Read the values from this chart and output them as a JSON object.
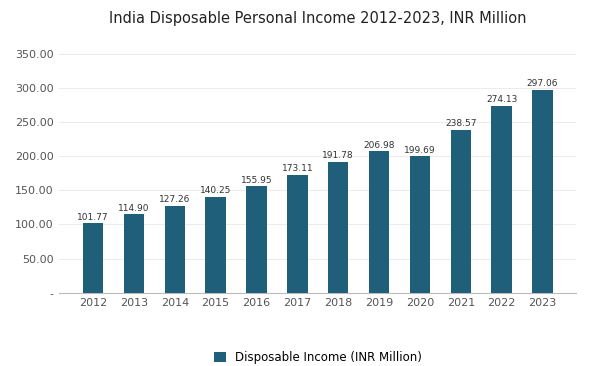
{
  "title": "India Disposable Personal Income 2012-2023, INR Million",
  "years": [
    2012,
    2013,
    2014,
    2015,
    2016,
    2017,
    2018,
    2019,
    2020,
    2021,
    2022,
    2023
  ],
  "values": [
    101.77,
    114.9,
    127.26,
    140.25,
    155.95,
    173.11,
    191.78,
    206.98,
    199.69,
    238.57,
    274.13,
    297.06
  ],
  "bar_color": "#1f5f7a",
  "background_color": "#ffffff",
  "legend_label": "Disposable Income (INR Million)",
  "ylim": [
    0,
    375
  ],
  "yticks": [
    0,
    50,
    100,
    150,
    200,
    250,
    300,
    350
  ],
  "ytick_labels": [
    "-",
    "50.00",
    "100.00",
    "150.00",
    "200.00",
    "250.00",
    "300.00",
    "350.00"
  ],
  "bar_width": 0.5,
  "label_fontsize": 6.5,
  "title_fontsize": 10.5,
  "tick_fontsize": 8,
  "legend_fontsize": 8.5
}
